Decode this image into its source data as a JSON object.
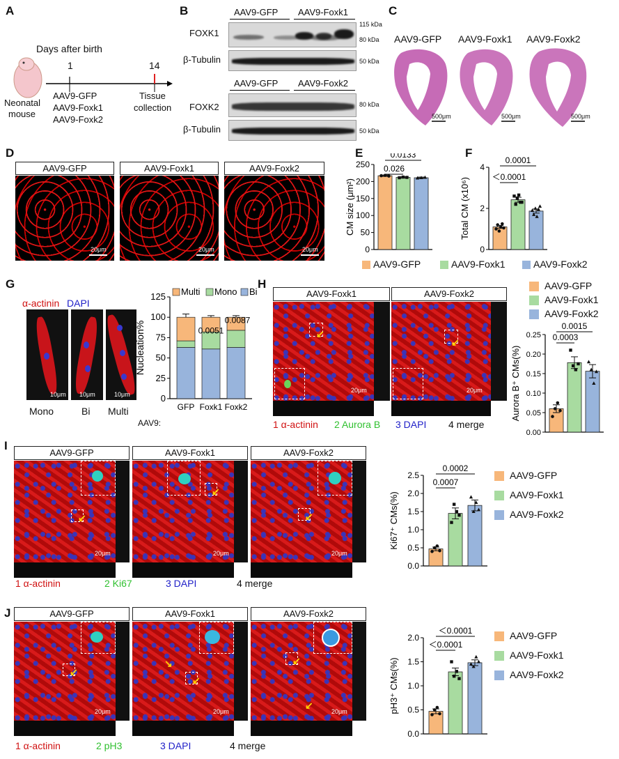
{
  "panels": {
    "A": {
      "label": "A",
      "days_label": "Days after birth",
      "day1": "1",
      "day14": "14",
      "mouse_label_1": "Neonatal",
      "mouse_label_2": "mouse",
      "injections": [
        "AAV9-GFP",
        "AAV9-Foxk1",
        "AAV9-Foxk2"
      ],
      "tissue_1": "Tissue",
      "tissue_2": "collection"
    },
    "B": {
      "label": "B",
      "top_groups": [
        "AAV9-GFP",
        "AAV9-Foxk1"
      ],
      "bottom_groups": [
        "AAV9-GFP",
        "AAV9-Foxk2"
      ],
      "rows": [
        "FOXK1",
        "β-Tubulin",
        "FOXK2",
        "β-Tubulin"
      ],
      "markers_top": [
        "115 kDa",
        "80 kDa",
        "50 kDa"
      ],
      "markers_bottom": [
        "80 kDa",
        "50 kDa"
      ]
    },
    "C": {
      "label": "C",
      "groups": [
        "AAV9-GFP",
        "AAV9-Foxk1",
        "AAV9-Foxk2"
      ],
      "scale": "500μm"
    },
    "D": {
      "label": "D",
      "groups": [
        "AAV9-GFP",
        "AAV9-Foxk1",
        "AAV9-Foxk2"
      ],
      "scale": "20μm"
    },
    "E": {
      "label": "E",
      "ylabel": "CM size (μm²)",
      "p1": "0.026",
      "p2": "0.0133"
    },
    "F": {
      "label": "F",
      "ylabel": "Total CM (x10⁶)",
      "p1": "＜0.0001",
      "p2": "0.0001"
    },
    "EF_legend": [
      "AAV9-GFP",
      "AAV9-Foxk1",
      "AAV9-Foxk2"
    ],
    "G": {
      "label": "G",
      "stain_red": "α-actinin",
      "stain_blue": "DAPI",
      "cells": [
        "Mono",
        "Bi",
        "Multi"
      ],
      "scale": "10μm",
      "ylabel": "Nucleation%",
      "legend": [
        "Multi",
        "Mono",
        "Bi"
      ],
      "xprefix": "AAV9:",
      "p1": "0.0051",
      "p2": "0.0087"
    },
    "H": {
      "label": "H",
      "groups": [
        "AAV9-Foxk1",
        "AAV9-Foxk2"
      ],
      "channels": [
        "1 α-actinin",
        "2 Aurora B",
        "3 DAPI",
        "4 merge"
      ],
      "ylabel": "Aurora B⁺ CMs(%)",
      "p1": "0.0003",
      "p2": "0.0015",
      "legend": [
        "AAV9-GFP",
        "AAV9-Foxk1",
        "AAV9-Foxk2"
      ],
      "scale": "20μm"
    },
    "I": {
      "label": "I",
      "groups": [
        "AAV9-GFP",
        "AAV9-Foxk1",
        "AAV9-Foxk2"
      ],
      "channels": [
        "1 α-actinin",
        "2 Ki67",
        "3 DAPI",
        "4 merge"
      ],
      "ylabel": "Ki67⁺ CMs(%)",
      "p1": "0.0007",
      "p2": "0.0002",
      "legend": [
        "AAV9-GFP",
        "AAV9-Foxk1",
        "AAV9-Foxk2"
      ],
      "scale": "20μm"
    },
    "J": {
      "label": "J",
      "groups": [
        "AAV9-GFP",
        "AAV9-Foxk1",
        "AAV9-Foxk2"
      ],
      "channels": [
        "1 α-actinin",
        "2 pH3",
        "3 DAPI",
        "4 merge"
      ],
      "ylabel": "pH3⁺ CMs(%)",
      "p1": "＜0.0001",
      "p2": "＜0.0001",
      "legend": [
        "AAV9-GFP",
        "AAV9-Foxk1",
        "AAV9-Foxk2"
      ],
      "scale": "20μm"
    }
  },
  "colors": {
    "gfp": "#f7b77a",
    "foxk1": "#a8dba0",
    "foxk2": "#98b4dc"
  },
  "chart_data": [
    {
      "id": "E",
      "type": "bar",
      "categories": [
        "AAV9-GFP",
        "AAV9-Foxk1",
        "AAV9-Foxk2"
      ],
      "values": [
        217,
        212,
        211
      ],
      "errors": [
        2,
        2,
        2
      ],
      "points": [
        [
          217,
          218,
          216
        ],
        [
          211,
          213,
          212
        ],
        [
          210,
          211,
          212
        ]
      ],
      "ylim": [
        0,
        250
      ],
      "yticks": [
        0,
        50,
        100,
        150,
        200,
        250
      ],
      "ylabel": "CM size (μm²)"
    },
    {
      "id": "F",
      "type": "bar",
      "categories": [
        "AAV9-GFP",
        "AAV9-Foxk1",
        "AAV9-Foxk2"
      ],
      "values": [
        1.1,
        2.42,
        1.87
      ],
      "errors": [
        0.07,
        0.12,
        0.1
      ],
      "points": [
        [
          1.0,
          1.2,
          0.9,
          1.1,
          1.25,
          1.05
        ],
        [
          2.6,
          2.2,
          2.5,
          2.65,
          2.3,
          2.3
        ],
        [
          1.9,
          1.7,
          2.0,
          1.6,
          1.95,
          2.1
        ]
      ],
      "ylim": [
        0,
        4
      ],
      "yticks": [
        0,
        2,
        4
      ],
      "ylabel": "Total CM (x10⁶)"
    },
    {
      "id": "G",
      "type": "bar",
      "stacked": true,
      "categories": [
        "GFP",
        "Foxk1",
        "Foxk2"
      ],
      "series": [
        {
          "name": "Bi",
          "values": [
            63,
            61,
            63
          ],
          "errors": [
            3,
            2,
            3
          ]
        },
        {
          "name": "Mono",
          "values": [
            8,
            21,
            21
          ],
          "errors": [
            1,
            2,
            2
          ]
        },
        {
          "name": "Multi",
          "values": [
            29,
            18,
            16
          ],
          "errors": [
            4,
            2,
            2
          ]
        }
      ],
      "ylim": [
        0,
        125
      ],
      "yticks": [
        0,
        25,
        50,
        75,
        100,
        125
      ],
      "ylabel": "Nucleation%"
    },
    {
      "id": "H",
      "type": "bar",
      "categories": [
        "AAV9-GFP",
        "AAV9-Foxk1",
        "AAV9-Foxk2"
      ],
      "values": [
        0.06,
        0.178,
        0.156
      ],
      "errors": [
        0.01,
        0.015,
        0.017
      ],
      "points": [
        [
          0.04,
          0.06,
          0.075,
          0.055
        ],
        [
          0.21,
          0.17,
          0.16,
          0.175
        ],
        [
          0.18,
          0.16,
          0.125,
          0.155
        ]
      ],
      "ylim": [
        0,
        0.25
      ],
      "yticks": [
        0,
        0.05,
        0.1,
        0.15,
        0.2,
        0.25
      ],
      "ylabel": "Aurora B⁺ CMs(%)"
    },
    {
      "id": "I",
      "type": "bar",
      "categories": [
        "AAV9-GFP",
        "AAV9-Foxk1",
        "AAV9-Foxk2"
      ],
      "values": [
        0.47,
        1.45,
        1.67
      ],
      "errors": [
        0.05,
        0.15,
        0.15
      ],
      "points": [
        [
          0.4,
          0.5,
          0.55,
          0.42
        ],
        [
          1.2,
          1.7,
          1.5,
          1.4
        ],
        [
          1.9,
          1.5,
          1.75,
          1.55
        ]
      ],
      "ylim": [
        0,
        2.5
      ],
      "yticks": [
        0,
        0.5,
        1.0,
        1.5,
        2.0,
        2.5
      ],
      "ylabel": "Ki67⁺ CMs(%)"
    },
    {
      "id": "J",
      "type": "bar",
      "categories": [
        "AAV9-GFP",
        "AAV9-Foxk1",
        "AAV9-Foxk2"
      ],
      "values": [
        0.47,
        1.29,
        1.48
      ],
      "errors": [
        0.05,
        0.08,
        0.06
      ],
      "points": [
        [
          0.4,
          0.5,
          0.55,
          0.42
        ],
        [
          1.5,
          1.2,
          1.3,
          1.15
        ],
        [
          1.45,
          1.4,
          1.6,
          1.5
        ]
      ],
      "ylim": [
        0,
        2.0
      ],
      "yticks": [
        0,
        0.5,
        1.0,
        1.5,
        2.0
      ],
      "ylabel": "pH3⁺ CMs(%)"
    }
  ]
}
